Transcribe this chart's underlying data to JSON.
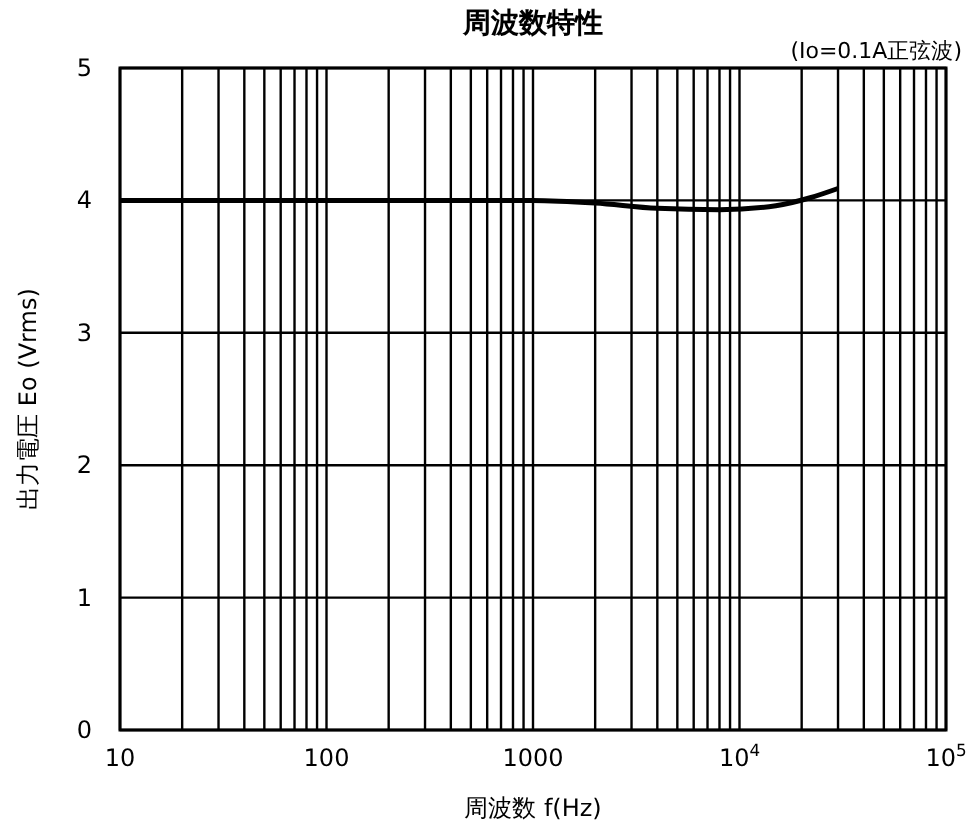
{
  "chart_data": {
    "type": "line",
    "title": "周波数特性",
    "xlabel": "周波数 f(Hz)",
    "ylabel": "出力電圧 Eo (Vrms)",
    "annotations": [
      "(Io=0.1A正弦波)"
    ],
    "log": "x",
    "grid": true,
    "marker": "none",
    "line_style": "solid",
    "xlim": [
      10,
      100000
    ],
    "ylim": [
      0,
      5
    ],
    "xticks": [
      10,
      {
        "value": 20,
        "label": null
      },
      {
        "value": 30,
        "label": null
      },
      {
        "value": 40,
        "label": null
      },
      {
        "value": 50,
        "label": null
      },
      {
        "value": 60,
        "label": null
      },
      {
        "value": 70,
        "label": null
      },
      {
        "value": 80,
        "label": null
      },
      {
        "value": 90,
        "label": null
      },
      100,
      {
        "value": 200,
        "label": null
      },
      {
        "value": 300,
        "label": null
      },
      {
        "value": 400,
        "label": null
      },
      {
        "value": 500,
        "label": null
      },
      {
        "value": 600,
        "label": null
      },
      {
        "value": 700,
        "label": null
      },
      {
        "value": 800,
        "label": null
      },
      {
        "value": 900,
        "label": null
      },
      1000,
      {
        "value": 2000,
        "label": null
      },
      {
        "value": 3000,
        "label": null
      },
      {
        "value": 4000,
        "label": null
      },
      {
        "value": 5000,
        "label": null
      },
      {
        "value": 6000,
        "label": null
      },
      {
        "value": 7000,
        "label": null
      },
      {
        "value": 8000,
        "label": null
      },
      {
        "value": 9000,
        "label": null
      },
      {
        "value": 10000,
        "label": "10$^{4}$"
      },
      {
        "value": 20000,
        "label": null
      },
      {
        "value": 30000,
        "label": null
      },
      {
        "value": 40000,
        "label": null
      },
      {
        "value": 50000,
        "label": null
      },
      {
        "value": 60000,
        "label": null
      },
      {
        "value": 70000,
        "label": null
      },
      {
        "value": 80000,
        "label": null
      },
      {
        "value": 90000,
        "label": null
      },
      {
        "value": 100000,
        "label": "10$^{5}$"
      }
    ],
    "yticks": [
      0,
      1,
      2,
      3,
      4,
      5
    ],
    "series": [
      {
        "color": "#000000",
        "x": [
          10,
          100,
          1000,
          2000,
          4000,
          8000,
          15000,
          22000,
          30000
        ],
        "values": [
          4.0,
          4.0,
          4.0,
          3.98,
          3.94,
          3.93,
          3.96,
          4.02,
          4.09
        ]
      }
    ]
  }
}
